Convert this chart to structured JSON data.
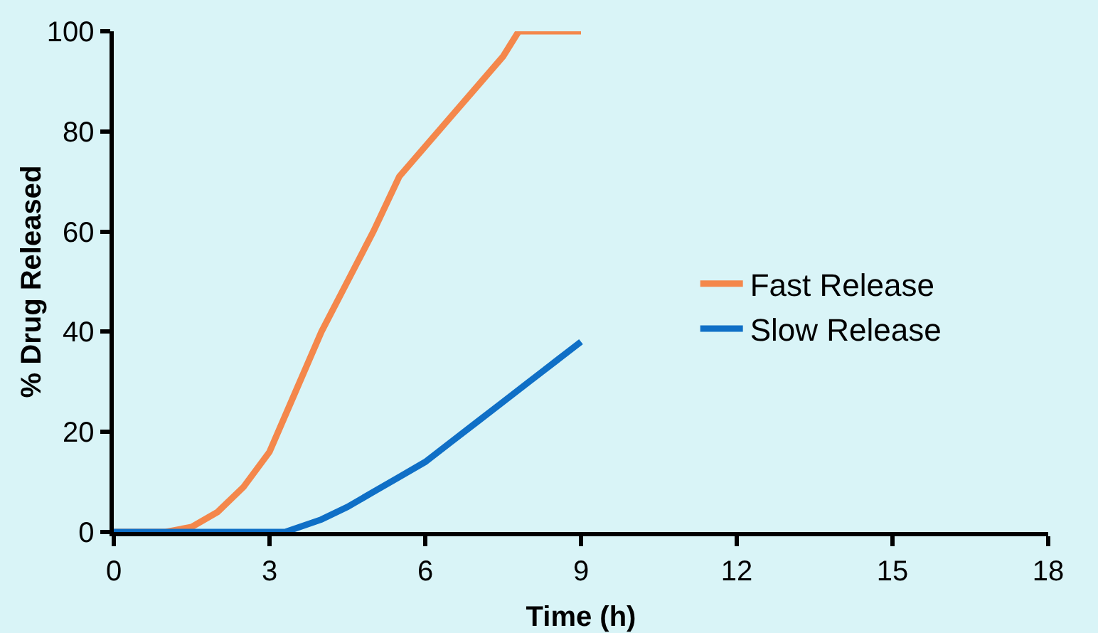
{
  "chart_data": {
    "type": "line",
    "xlabel": "Time (h)",
    "ylabel": "% Drug Released",
    "xlim": [
      0,
      18
    ],
    "xticks": [
      0,
      3,
      6,
      9,
      12,
      15,
      18
    ],
    "ylim": [
      0,
      100
    ],
    "yticks": [
      0,
      20,
      40,
      60,
      80,
      100
    ],
    "grid": false,
    "legend": "right",
    "marker": "none",
    "line_style": "solid",
    "series": [
      {
        "name": "Fast Release",
        "color": "#f4874b",
        "x": [
          0,
          1,
          1.5,
          2,
          2.5,
          3,
          3.5,
          4,
          4.5,
          5,
          5.5,
          6,
          6.5,
          7,
          7.5,
          7.8,
          8,
          9
        ],
        "values": [
          0,
          0,
          1,
          4,
          9,
          16,
          28,
          40,
          50,
          60,
          71,
          77,
          83,
          89,
          95,
          100,
          100,
          100
        ]
      },
      {
        "name": "Slow Release",
        "color": "#0f6fc6",
        "x": [
          0,
          3,
          3.3,
          4,
          4.5,
          5,
          5.5,
          6,
          6.5,
          7,
          7.5,
          8,
          8.5,
          9
        ],
        "values": [
          0,
          0,
          0,
          2.5,
          5,
          8,
          11,
          14,
          18,
          22,
          26,
          30,
          34,
          38
        ]
      }
    ]
  }
}
